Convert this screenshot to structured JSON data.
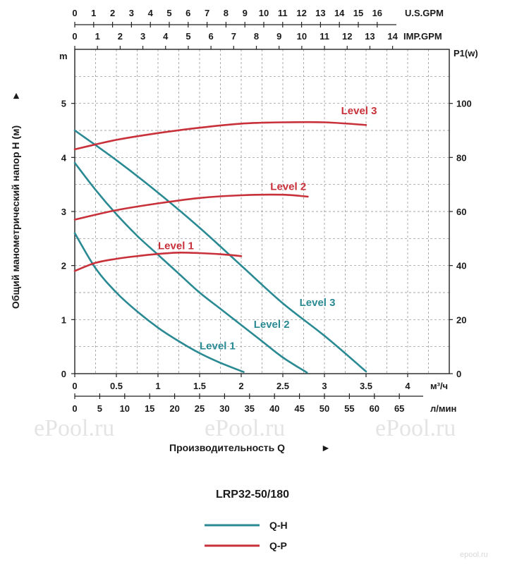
{
  "chart_data": {
    "type": "line",
    "title": "LRP32-50/180",
    "y_left": {
      "label": "Общий манометрический напор H (м)",
      "unit": "m",
      "ticks": [
        "0",
        "1",
        "2",
        "3",
        "4",
        "5"
      ],
      "ylim": [
        0,
        6
      ]
    },
    "y_right": {
      "unit": "P1(w)",
      "ticks": [
        "0",
        "20",
        "40",
        "60",
        "80",
        "100"
      ],
      "ylim": [
        0,
        120
      ]
    },
    "x_m3h": {
      "unit": "м³/ч",
      "ticks": [
        "0",
        "0.5",
        "1",
        "1.5",
        "2",
        "2.5",
        "3",
        "3.5",
        "4"
      ],
      "xlim": [
        0,
        4.5
      ]
    },
    "x_lmin": {
      "unit": "л/мин",
      "ticks": [
        "0",
        "5",
        "10",
        "15",
        "20",
        "25",
        "30",
        "35",
        "40",
        "45",
        "50",
        "55",
        "60",
        "65"
      ]
    },
    "x_usgpm": {
      "unit": "U.S.GPM",
      "ticks": [
        "0",
        "1",
        "2",
        "3",
        "4",
        "5",
        "6",
        "7",
        "8",
        "9",
        "10",
        "11",
        "12",
        "13",
        "14",
        "15",
        "16"
      ]
    },
    "x_impgpm": {
      "unit": "IMP.GPM",
      "ticks": [
        "0",
        "1",
        "2",
        "3",
        "4",
        "5",
        "6",
        "7",
        "8",
        "9",
        "10",
        "11",
        "12",
        "13",
        "14"
      ]
    },
    "xlabel": "Производительность Q",
    "grid": true,
    "legend": [
      {
        "name": "Q-H",
        "color": "#2a8a93"
      },
      {
        "name": "Q-P",
        "color": "#c8303a"
      }
    ],
    "series_qh": [
      {
        "name": "Level 1",
        "color": "#2a8a93",
        "x": [
          0,
          0.25,
          0.5,
          0.75,
          1.0,
          1.25,
          1.5,
          1.75,
          2.03
        ],
        "y": [
          2.6,
          1.95,
          1.5,
          1.15,
          0.85,
          0.6,
          0.38,
          0.2,
          0.03
        ]
      },
      {
        "name": "Level 2",
        "color": "#2a8a93",
        "x": [
          0,
          0.25,
          0.5,
          0.75,
          1.0,
          1.25,
          1.5,
          1.75,
          2.0,
          2.25,
          2.5,
          2.79
        ],
        "y": [
          3.9,
          3.4,
          2.95,
          2.55,
          2.2,
          1.85,
          1.5,
          1.2,
          0.9,
          0.6,
          0.3,
          0.02
        ]
      },
      {
        "name": "Level 3",
        "color": "#2a8a93",
        "x": [
          0,
          0.5,
          1.0,
          1.5,
          2.0,
          2.5,
          3.0,
          3.5
        ],
        "y": [
          4.5,
          3.95,
          3.35,
          2.7,
          2.0,
          1.3,
          0.7,
          0.04
        ]
      }
    ],
    "series_qp": [
      {
        "name": "Level 1",
        "color": "#c8303a",
        "x": [
          0,
          0.25,
          0.5,
          0.75,
          1.0,
          1.25,
          1.5,
          1.75,
          2.0
        ],
        "y": [
          38,
          41,
          42.5,
          43.5,
          44.3,
          44.8,
          44.6,
          44.2,
          43.5
        ]
      },
      {
        "name": "Level 2",
        "color": "#c8303a",
        "x": [
          0,
          0.5,
          1.0,
          1.5,
          2.0,
          2.5,
          2.8
        ],
        "y": [
          57,
          60.5,
          63,
          65,
          66,
          66.2,
          65.5
        ]
      },
      {
        "name": "Level 3",
        "color": "#c8303a",
        "x": [
          0,
          0.5,
          1.0,
          1.5,
          2.0,
          2.5,
          3.0,
          3.5
        ],
        "y": [
          83,
          86.5,
          89,
          91,
          92.5,
          93,
          93,
          92
        ]
      }
    ],
    "annotations": [
      "Level 1",
      "Level 2",
      "Level 3",
      "Level 1",
      "Level 2",
      "Level 3"
    ]
  },
  "watermarks": [
    "ePool.ru",
    "ePool.ru",
    "ePool.ru",
    "epool.ru"
  ]
}
